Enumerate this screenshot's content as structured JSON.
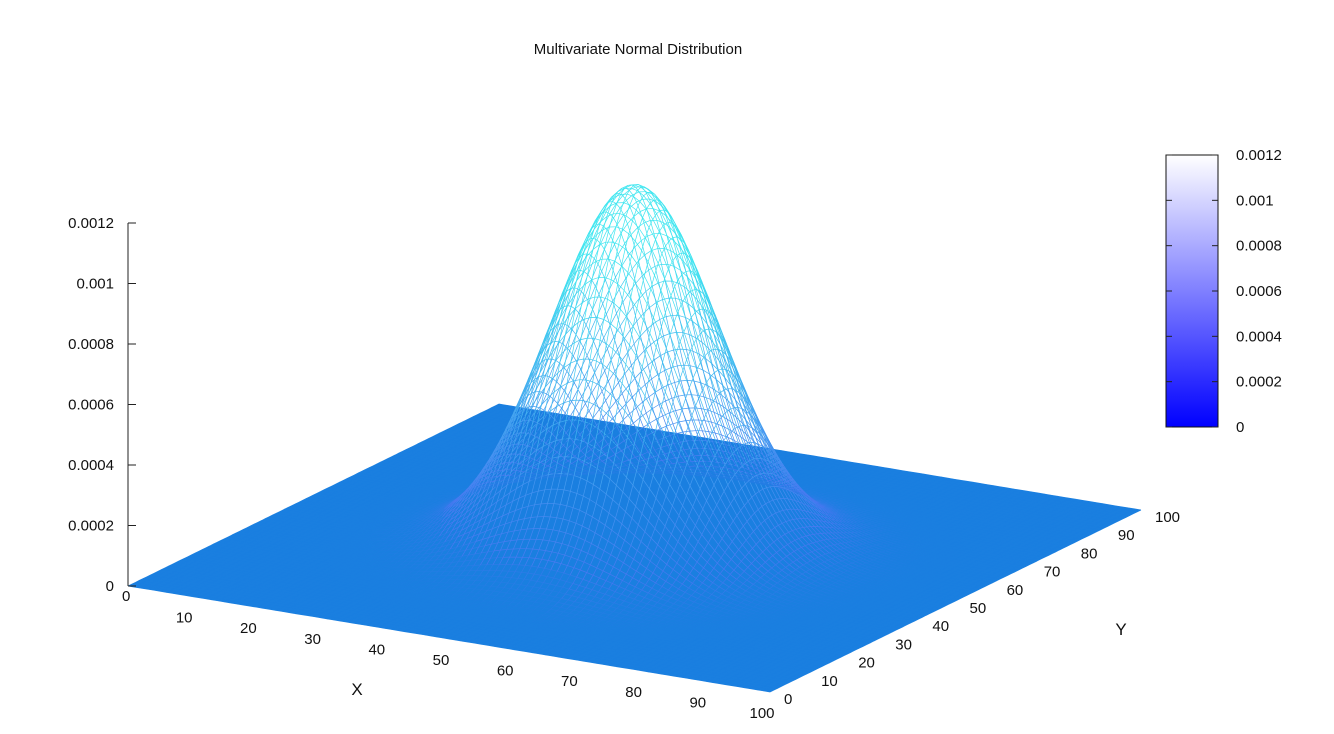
{
  "chart_data": {
    "type": "surface",
    "title": "Multivariate Normal Distribution",
    "xlabel": "X",
    "ylabel": "Y",
    "zlabel": "",
    "xlim": [
      0,
      100
    ],
    "ylim": [
      0,
      100
    ],
    "zlim": [
      0,
      0.0012
    ],
    "x_ticks": [
      "0",
      "10",
      "20",
      "30",
      "40",
      "50",
      "60",
      "70",
      "80",
      "90",
      "100"
    ],
    "y_ticks": [
      "0",
      "10",
      "20",
      "30",
      "40",
      "50",
      "60",
      "70",
      "80",
      "90",
      "100"
    ],
    "z_ticks": [
      "0",
      "0.0002",
      "0.0004",
      "0.0006",
      "0.0008",
      "0.001",
      "0.0012"
    ],
    "colorbar": {
      "range": [
        0,
        0.0012
      ],
      "ticks": [
        "0",
        "0.0002",
        "0.0004",
        "0.0006",
        "0.0008",
        "0.001",
        "0.0012"
      ],
      "low_color": "#0000ff",
      "high_color": "#ffffff"
    },
    "surface": {
      "function": "bivariate normal density",
      "mean": [
        50,
        50
      ],
      "std": [
        11.5,
        11.5
      ],
      "peak_value": 0.0012,
      "grid_step": 1
    },
    "colors": {
      "mesh_low": "#1a7fe0",
      "mesh_mid": "#4878f0",
      "mesh_high": "#40e6f0"
    }
  }
}
